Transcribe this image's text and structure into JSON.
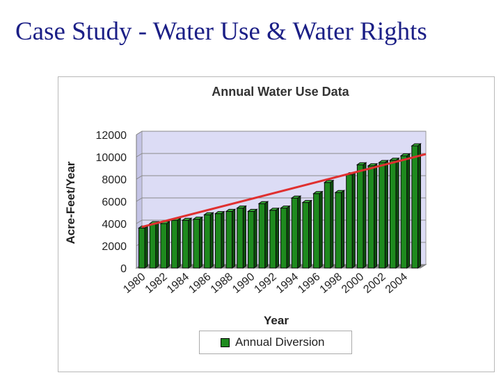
{
  "slide": {
    "title": "Case Study - Water Use & Water Rights"
  },
  "chart_data": {
    "type": "bar",
    "title": "Annual Water Use Data",
    "xlabel": "Year",
    "ylabel": "Acre-Feet/Year",
    "ylim": [
      0,
      12000
    ],
    "yticks": [
      0,
      2000,
      4000,
      6000,
      8000,
      10000,
      12000
    ],
    "categories": [
      "1980",
      "1981",
      "1982",
      "1983",
      "1984",
      "1985",
      "1986",
      "1987",
      "1988",
      "1989",
      "1990",
      "1991",
      "1992",
      "1993",
      "1994",
      "1995",
      "1996",
      "1997",
      "1998",
      "1999",
      "2000",
      "2001",
      "2002",
      "2003",
      "2004",
      "2005"
    ],
    "xtick_labels": [
      "1980",
      "1982",
      "1984",
      "1986",
      "1988",
      "1990",
      "1992",
      "1994",
      "1996",
      "1998",
      "2000",
      "2002",
      "2004"
    ],
    "series": [
      {
        "name": "Annual Diversion",
        "color": "#1e8a1e",
        "values": [
          3600,
          4000,
          4000,
          4300,
          4300,
          4400,
          4800,
          4900,
          5100,
          5400,
          5100,
          5800,
          5200,
          5400,
          6300,
          5900,
          6700,
          7700,
          6800,
          8400,
          9300,
          9200,
          9500,
          9700,
          10100,
          11000
        ]
      }
    ],
    "trendline": {
      "color": "#e03030",
      "start": [
        1980,
        3700
      ],
      "end": [
        2005,
        10000
      ]
    },
    "grid": true,
    "legend": "bottom"
  }
}
